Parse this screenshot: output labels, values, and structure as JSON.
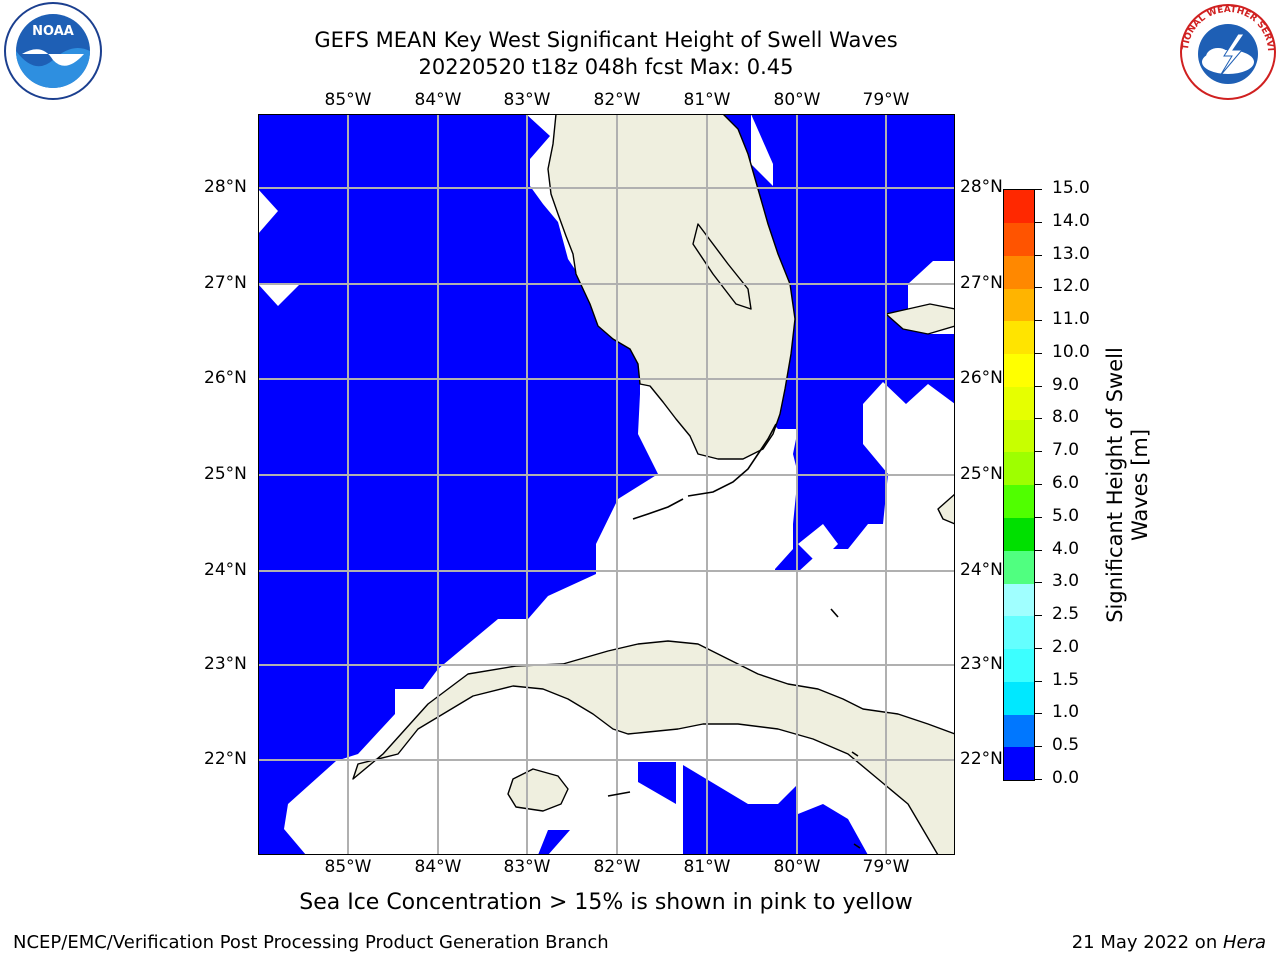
{
  "title": {
    "line1": "GEFS MEAN Key West Significant Height of Swell Waves",
    "line2": "20220520 t18z 048h fcst   Max: 0.45"
  },
  "logos": {
    "left": "NOAA",
    "right": "NATIONAL WEATHER SERVICE"
  },
  "map": {
    "lon_labels": [
      "85°W",
      "84°W",
      "83°W",
      "82°W",
      "81°W",
      "80°W",
      "79°W"
    ],
    "lat_labels": [
      "28°N",
      "27°N",
      "26°N",
      "25°N",
      "24°N",
      "23°N",
      "22°N"
    ],
    "colors": {
      "ocean": "#0000ff",
      "land": "#efefdf",
      "grid": "#b0b0b0",
      "nodata": "#ffffff"
    }
  },
  "colorbar": {
    "labels": [
      "0.0",
      "0.5",
      "1.0",
      "1.5",
      "2.0",
      "2.5",
      "3.0",
      "4.0",
      "5.0",
      "6.0",
      "7.0",
      "8.0",
      "9.0",
      "10.0",
      "11.0",
      "12.0",
      "13.0",
      "14.0",
      "15.0"
    ],
    "colors": [
      "#0000ff",
      "#0077ff",
      "#00e8ff",
      "#3cffff",
      "#64ffff",
      "#a0ffff",
      "#50ff80",
      "#00e000",
      "#50ff00",
      "#9eff00",
      "#c8ff00",
      "#e6ff00",
      "#ffff00",
      "#ffe400",
      "#ffb400",
      "#ff8800",
      "#ff5400",
      "#ff2800",
      "#ff0000"
    ],
    "title_line1": "Significant Height of Swell",
    "title_line2": "Waves [m]"
  },
  "caption": "Sea Ice Concentration > 15% is shown in pink to yellow",
  "footer": {
    "left": "NCEP/EMC/Verification Post Processing Product Generation Branch",
    "right_date": "21 May 2022 on ",
    "right_host": "Hera"
  }
}
